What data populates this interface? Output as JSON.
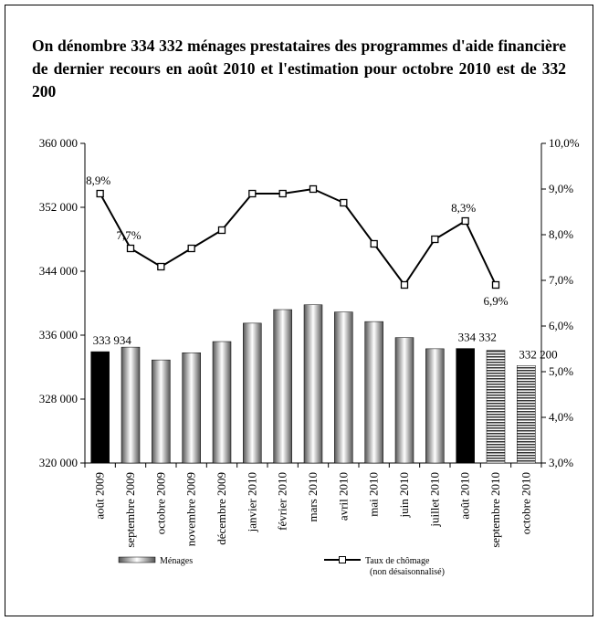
{
  "chart_data": {
    "type": "bar-line",
    "title": "On dénombre 334 332 ménages prestataires des programmes d'aide financière de dernier recours en août 2010 et l'estimation pour octobre 2010 est de 332 200",
    "categories": [
      "août 2009",
      "septembre 2009",
      "octobre 2009",
      "novembre 2009",
      "décembre 2009",
      "janvier 2010",
      "février 2010",
      "mars 2010",
      "avril 2010",
      "mai 2010",
      "juin 2010",
      "juillet 2010",
      "août 2010",
      "septembre 2010",
      "octobre 2010"
    ],
    "series": [
      {
        "name": "Ménages",
        "kind": "bar",
        "values": [
          333934,
          334500,
          332900,
          333800,
          335200,
          337500,
          339200,
          339800,
          338900,
          337700,
          335700,
          334300,
          334332,
          334100,
          332200
        ],
        "value_labels": [
          "333 934",
          null,
          null,
          null,
          null,
          null,
          null,
          null,
          null,
          null,
          null,
          null,
          "334 332",
          null,
          "332 200"
        ],
        "bar_fills": [
          "black",
          "gradient",
          "gradient",
          "gradient",
          "gradient",
          "gradient",
          "gradient",
          "gradient",
          "gradient",
          "gradient",
          "gradient",
          "gradient",
          "black",
          "stripes",
          "stripes"
        ]
      },
      {
        "name": "Taux de chômage",
        "subname": "(non désaisonnalisé)",
        "kind": "line",
        "axis": "y2",
        "color": "#000000",
        "values": [
          8.9,
          7.7,
          7.3,
          7.7,
          8.1,
          8.9,
          8.9,
          9.0,
          8.7,
          7.8,
          6.9,
          7.9,
          8.3,
          6.9,
          null
        ],
        "value_labels": [
          "8,9%",
          "7,7%",
          null,
          null,
          null,
          null,
          null,
          null,
          null,
          null,
          null,
          null,
          "8,3%",
          "6,9%",
          null
        ]
      }
    ],
    "ylim": [
      320000,
      360000
    ],
    "yticks": [
      {
        "value": 320000,
        "label": "320 000"
      },
      {
        "value": 328000,
        "label": "328 000"
      },
      {
        "value": 336000,
        "label": "336 000"
      },
      {
        "value": 344000,
        "label": "344 000"
      },
      {
        "value": 352000,
        "label": "352 000"
      },
      {
        "value": 360000,
        "label": "360 000"
      }
    ],
    "y2lim": [
      3,
      10
    ],
    "y2ticks": [
      {
        "value": 3,
        "label": "3,0%"
      },
      {
        "value": 4,
        "label": "4,0%"
      },
      {
        "value": 5,
        "label": "5,0%"
      },
      {
        "value": 6,
        "label": "6,0%"
      },
      {
        "value": 7,
        "label": "7,0%"
      },
      {
        "value": 8,
        "label": "8,0%"
      },
      {
        "value": 9,
        "label": "9,0%"
      },
      {
        "value": 10,
        "label": "10,0%"
      }
    ],
    "grid": false
  }
}
